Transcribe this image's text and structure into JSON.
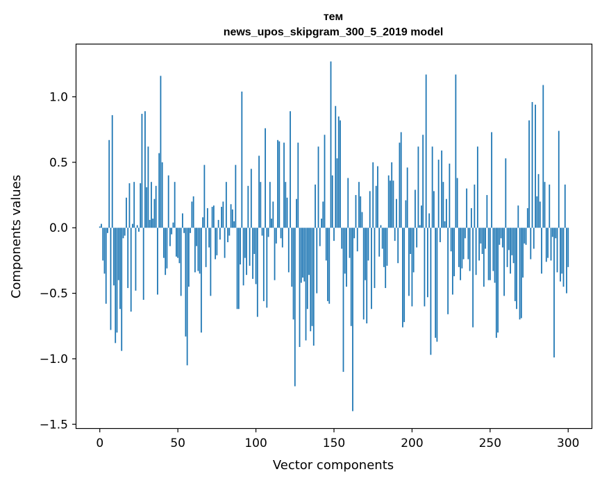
{
  "chart_data": {
    "type": "bar",
    "title": [
      "тем",
      "news_upos_skipgram_300_5_2019 model"
    ],
    "xlabel": "Vector components",
    "ylabel": "Components values",
    "xlim": [
      -15,
      315
    ],
    "ylim": [
      -1.53,
      1.4
    ],
    "xticks": [
      0,
      50,
      100,
      150,
      200,
      250,
      300
    ],
    "yticks": [
      1.0,
      0.5,
      0.0,
      -0.5,
      -1.0,
      -1.5
    ],
    "ytick_labels": [
      "1.0",
      "0.5",
      "0.0",
      "−0.5",
      "−1.0",
      "−1.5"
    ],
    "grid": false,
    "legend": "none",
    "color": "#1f77b4",
    "x_start": 0,
    "values": [
      0.01,
      0.03,
      -0.25,
      -0.35,
      -0.58,
      -0.04,
      0.67,
      -0.78,
      0.86,
      -0.44,
      -0.88,
      -0.8,
      -0.4,
      -0.62,
      -0.94,
      -0.08,
      -0.06,
      0.23,
      -0.46,
      0.34,
      -0.64,
      0.03,
      0.35,
      -0.48,
      0.02,
      -0.03,
      0.34,
      0.87,
      -0.55,
      0.89,
      0.31,
      0.62,
      0.06,
      0.35,
      0.07,
      0.22,
      0.32,
      -0.51,
      0.57,
      1.16,
      0.5,
      -0.23,
      -0.36,
      -0.31,
      0.4,
      -0.14,
      -0.05,
      0.04,
      0.35,
      -0.22,
      -0.23,
      -0.27,
      -0.52,
      0.11,
      -0.04,
      -0.83,
      -1.05,
      -0.45,
      -0.04,
      0.2,
      0.24,
      -0.34,
      -0.14,
      -0.33,
      -0.35,
      -0.8,
      0.08,
      0.48,
      -0.3,
      0.15,
      -0.15,
      -0.52,
      0.16,
      0.17,
      -0.24,
      -0.21,
      0.06,
      -0.09,
      0.16,
      0.2,
      -0.23,
      0.35,
      -0.11,
      -0.06,
      0.18,
      0.14,
      0.05,
      0.48,
      -0.62,
      -0.62,
      -0.28,
      1.04,
      -0.44,
      -0.23,
      -0.36,
      0.32,
      -0.29,
      0.45,
      -0.39,
      -0.2,
      -0.43,
      -0.68,
      0.55,
      0.35,
      -0.06,
      -0.56,
      0.76,
      -0.61,
      -0.07,
      0.35,
      0.07,
      0.2,
      -0.4,
      -0.12,
      0.67,
      0.66,
      -0.08,
      -0.15,
      0.65,
      0.35,
      0.23,
      -0.34,
      0.89,
      -0.45,
      -0.7,
      -1.21,
      0.22,
      0.65,
      -0.91,
      -0.42,
      -0.38,
      -0.41,
      -0.86,
      -0.62,
      -0.36,
      -0.79,
      -0.75,
      -0.9,
      0.33,
      -0.5,
      0.62,
      -0.14,
      0.07,
      0.2,
      0.71,
      -0.25,
      -0.56,
      -0.58,
      1.27,
      0.4,
      -0.1,
      0.93,
      0.53,
      0.85,
      0.82,
      -0.16,
      -1.1,
      -0.35,
      -0.45,
      0.38,
      -0.23,
      -0.75,
      -1.4,
      -0.08,
      0.25,
      -0.18,
      0.35,
      0.24,
      0.12,
      -0.7,
      -0.4,
      -0.73,
      -0.25,
      0.28,
      -0.62,
      0.5,
      -0.46,
      0.32,
      0.47,
      -0.22,
      0.02,
      -0.16,
      -0.3,
      -0.46,
      -0.29,
      0.4,
      0.36,
      0.5,
      0.36,
      -0.1,
      0.22,
      -0.27,
      0.65,
      0.73,
      -0.76,
      -0.72,
      0.21,
      0.46,
      -0.52,
      -0.2,
      -0.6,
      -0.34,
      0.29,
      -0.15,
      0.62,
      0.02,
      0.17,
      0.71,
      -0.6,
      1.17,
      -0.53,
      0.11,
      -0.97,
      0.62,
      0.28,
      -0.84,
      -0.87,
      0.52,
      -0.11,
      0.59,
      0.35,
      0.05,
      0.22,
      -0.66,
      0.49,
      -0.18,
      -0.51,
      -0.37,
      1.17,
      0.38,
      -0.3,
      -0.4,
      -0.31,
      -0.24,
      -0.08,
      0.3,
      -0.24,
      -0.33,
      0.15,
      -0.76,
      0.33,
      -0.36,
      0.62,
      -0.25,
      -0.12,
      -0.2,
      -0.45,
      -0.16,
      0.25,
      -0.4,
      -0.4,
      0.73,
      -0.33,
      -0.42,
      -0.84,
      -0.8,
      -0.13,
      -0.08,
      -0.15,
      -0.52,
      0.53,
      -0.3,
      -0.17,
      -0.35,
      -0.21,
      -0.27,
      -0.56,
      -0.62,
      0.17,
      -0.7,
      -0.69,
      -0.38,
      -0.12,
      -0.13,
      0.15,
      0.82,
      -0.24,
      0.96,
      -0.16,
      0.94,
      0.24,
      0.41,
      0.2,
      -0.35,
      1.09,
      0.35,
      -0.26,
      -0.23,
      0.33,
      -0.25,
      -0.07,
      -0.99,
      -0.08,
      -0.34,
      0.74,
      -0.41,
      -0.35,
      -0.45,
      0.33,
      -0.5,
      -0.3
    ]
  }
}
